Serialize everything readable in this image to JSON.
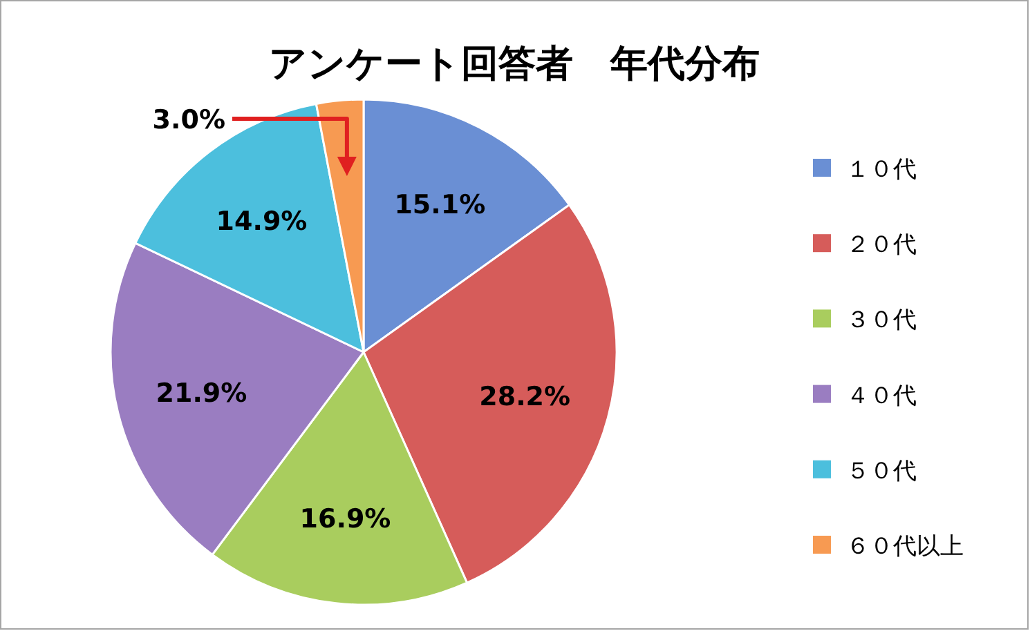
{
  "chart_data": {
    "type": "pie",
    "title": "アンケート回答者　年代分布",
    "categories": [
      "１０代",
      "２０代",
      "３０代",
      "４０代",
      "５０代",
      "６０代以上"
    ],
    "values": [
      15.1,
      28.2,
      16.9,
      21.9,
      14.9,
      3.0
    ],
    "colors": [
      "#6a8fd4",
      "#d65c5a",
      "#a9cd5e",
      "#9a7dc1",
      "#4cbfdd",
      "#f79a52"
    ],
    "value_labels": [
      "15.1%",
      "28.2%",
      "16.9%",
      "21.9%",
      "14.9%",
      "3.0%"
    ],
    "legend": "right"
  }
}
